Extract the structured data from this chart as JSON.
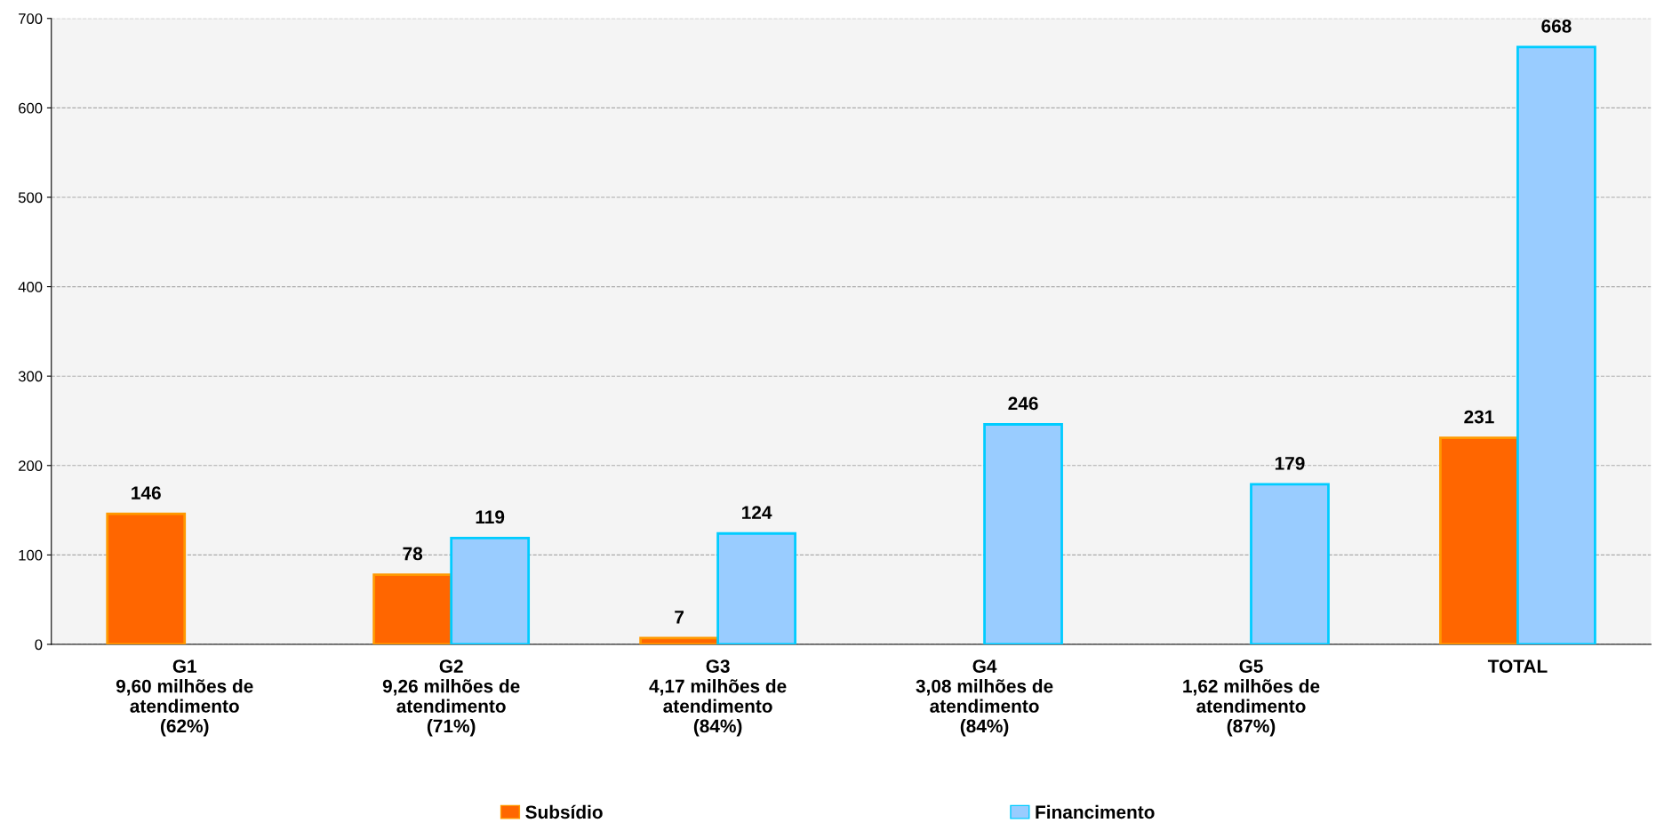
{
  "chart_data": {
    "type": "bar",
    "categories": [
      "G1\n9,60 milhões de\natendimento\n(62%)",
      "G2\n9,26 milhões de\natendimento\n(71%)",
      "G3\n4,17 milhões de\natendimento\n(84%)",
      "G4\n3,08 milhões de\natendimento\n(84%)",
      "G5\n1,62 milhões de\natendimento\n(87%)",
      "TOTAL"
    ],
    "series": [
      {
        "name": "Subsídio",
        "color": "#ff6600",
        "values": [
          146,
          78,
          7,
          null,
          null,
          231
        ]
      },
      {
        "name": "Financimento",
        "color": "#99ccff",
        "values": [
          null,
          119,
          124,
          246,
          179,
          668
        ]
      }
    ],
    "ylim": [
      0,
      700
    ],
    "yticks": [
      0,
      100,
      200,
      300,
      400,
      500,
      600,
      700
    ],
    "grid": "y",
    "legend": "bottom",
    "data_labels": true
  }
}
